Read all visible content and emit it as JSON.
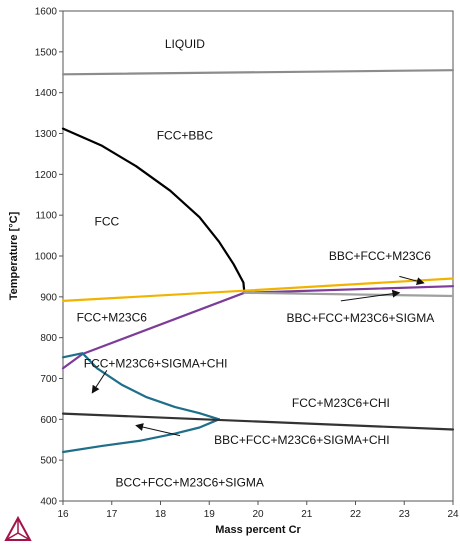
{
  "chart_data": {
    "type": "line",
    "xlabel": "Mass percent Cr",
    "ylabel": "Temperature [°C]",
    "xlim": [
      16,
      24
    ],
    "ylim": [
      400,
      1600
    ],
    "x_ticks": [
      16,
      17,
      18,
      19,
      20,
      21,
      22,
      23,
      24
    ],
    "y_ticks": [
      400,
      500,
      600,
      700,
      800,
      900,
      1000,
      1100,
      1200,
      1300,
      1400,
      1500,
      1600
    ],
    "grid": false,
    "series": [
      {
        "color": "#8c8c8c",
        "points": [
          [
            16,
            1445
          ],
          [
            24,
            1455
          ]
        ]
      },
      {
        "color": "#000000",
        "points": [
          [
            16,
            1312
          ],
          [
            16.8,
            1270
          ],
          [
            17.5,
            1220
          ],
          [
            18.2,
            1160
          ],
          [
            18.8,
            1095
          ],
          [
            19.2,
            1035
          ],
          [
            19.5,
            980
          ],
          [
            19.7,
            935
          ],
          [
            19.72,
            912
          ]
        ]
      },
      {
        "color": "#f0b400",
        "points": [
          [
            16,
            890
          ],
          [
            19.72,
            915
          ],
          [
            24,
            945
          ]
        ]
      },
      {
        "color": "#7d3c98",
        "points": [
          [
            16,
            725
          ],
          [
            16.4,
            760
          ],
          [
            19.72,
            910
          ],
          [
            24,
            926
          ]
        ]
      },
      {
        "color": "#a0a0a0",
        "points": [
          [
            19.72,
            910
          ],
          [
            24,
            902
          ]
        ]
      },
      {
        "color": "#1f6f8b",
        "points": [
          [
            16,
            752
          ],
          [
            16.4,
            762
          ],
          [
            16.7,
            725
          ],
          [
            17.2,
            685
          ],
          [
            17.7,
            655
          ],
          [
            18.3,
            630
          ],
          [
            18.8,
            615
          ],
          [
            19.2,
            600
          ]
        ]
      },
      {
        "color": "#1f6f8b",
        "points": [
          [
            16,
            520
          ],
          [
            16.8,
            535
          ],
          [
            17.6,
            548
          ],
          [
            18.3,
            565
          ],
          [
            18.8,
            580
          ],
          [
            19.2,
            600
          ]
        ]
      },
      {
        "color": "#333333",
        "points": [
          [
            16,
            614
          ],
          [
            24,
            575
          ]
        ]
      }
    ],
    "annotations": [
      {
        "text": "LIQUID",
        "x": 18.5,
        "y": 1510
      },
      {
        "text": "FCC+BBC",
        "x": 18.5,
        "y": 1285
      },
      {
        "text": "FCC",
        "x": 16.9,
        "y": 1075
      },
      {
        "text": "BBC+FCC+M23C6",
        "x": 22.5,
        "y": 990
      },
      {
        "text": "FCC+M23C6",
        "x": 17.0,
        "y": 840
      },
      {
        "text": "BBC+FCC+M23C6+SIGMA",
        "x": 22.1,
        "y": 838
      },
      {
        "text": "FCC+M23C6+SIGMA+CHI",
        "x": 17.9,
        "y": 727
      },
      {
        "text": "FCC+M23C6+CHI",
        "x": 21.7,
        "y": 630
      },
      {
        "text": "BBC+FCC+M23C6+SIGMA+CHI",
        "x": 20.9,
        "y": 540
      },
      {
        "text": "BCC+FCC+M23C6+SIGMA",
        "x": 18.6,
        "y": 435
      }
    ],
    "arrows": [
      {
        "from": [
          22.9,
          950
        ],
        "to": [
          23.4,
          934
        ]
      },
      {
        "from": [
          21.7,
          890
        ],
        "to": [
          22.9,
          910
        ]
      },
      {
        "from": [
          16.9,
          720
        ],
        "to": [
          16.6,
          665
        ]
      },
      {
        "from": [
          18.4,
          560
        ],
        "to": [
          17.5,
          585
        ]
      }
    ]
  }
}
